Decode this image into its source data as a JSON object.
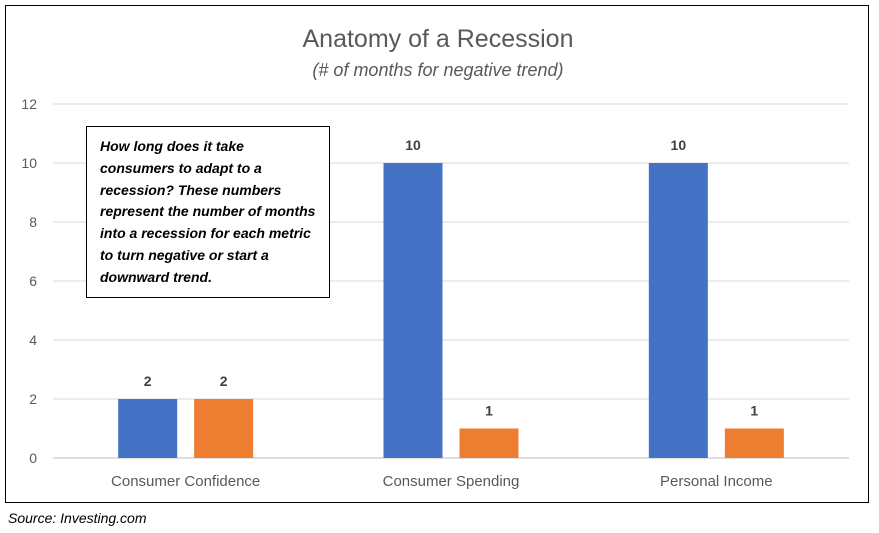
{
  "chart_data": {
    "type": "bar",
    "title": "Anatomy of a Recession",
    "subtitle": "(# of months for negative trend)",
    "categories": [
      "Consumer Confidence",
      "Consumer Spending",
      "Personal Income"
    ],
    "series": [
      {
        "values": [
          2,
          10,
          10
        ],
        "color": "#4472c4"
      },
      {
        "values": [
          2,
          1,
          1
        ],
        "color": "#ed7d31"
      }
    ],
    "ylim": [
      0,
      12
    ],
    "yticks": [
      "0",
      "2",
      "4",
      "6",
      "8",
      "10",
      "12"
    ],
    "grid": true,
    "data_labels": true,
    "annotation": "How long does it take consumers to adapt to a recession?  These numbers represent the number of months into a recession for each metric to turn negative or start a downward trend."
  },
  "source": "Source:  Investing.com"
}
